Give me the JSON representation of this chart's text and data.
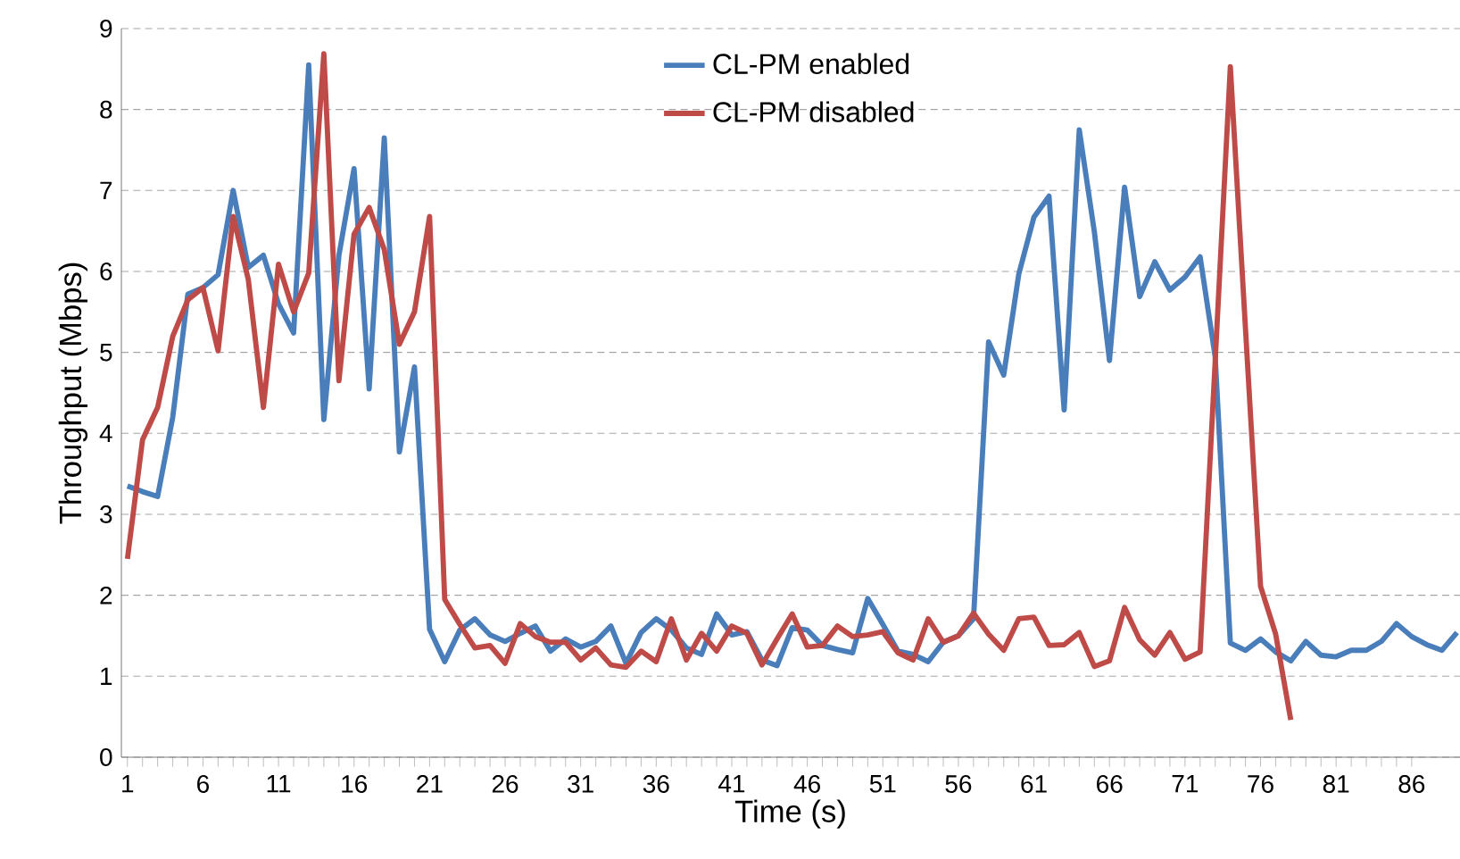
{
  "chart_data": {
    "type": "line",
    "xlabel": "Time (s)",
    "ylabel": "Throughput (Mbps)",
    "x": [
      1,
      2,
      3,
      4,
      5,
      6,
      7,
      8,
      9,
      10,
      11,
      12,
      13,
      14,
      15,
      16,
      17,
      18,
      19,
      20,
      21,
      22,
      23,
      24,
      25,
      26,
      27,
      28,
      29,
      30,
      31,
      32,
      33,
      34,
      35,
      36,
      37,
      38,
      39,
      40,
      41,
      42,
      43,
      44,
      45,
      46,
      47,
      48,
      49,
      50,
      51,
      52,
      53,
      54,
      55,
      56,
      57,
      58,
      59,
      60,
      61,
      62,
      63,
      64,
      65,
      66,
      67,
      68,
      69,
      70,
      71,
      72,
      73,
      74,
      75,
      76,
      77,
      78,
      79,
      80,
      81,
      82,
      83,
      84,
      85,
      86,
      87,
      88,
      89
    ],
    "series": [
      {
        "name": "CL-PM enabled",
        "color": "#4a7ebb",
        "values": [
          3.35,
          3.28,
          3.22,
          4.2,
          5.72,
          5.8,
          5.96,
          7.0,
          6.05,
          6.2,
          5.6,
          5.24,
          8.55,
          4.17,
          6.2,
          7.27,
          4.55,
          7.65,
          3.77,
          4.82,
          1.58,
          1.18,
          1.57,
          1.71,
          1.51,
          1.43,
          1.53,
          1.62,
          1.31,
          1.46,
          1.36,
          1.43,
          1.62,
          1.16,
          1.54,
          1.71,
          1.57,
          1.35,
          1.27,
          1.77,
          1.51,
          1.55,
          1.2,
          1.13,
          1.6,
          1.57,
          1.38,
          1.33,
          1.29,
          1.96,
          1.64,
          1.31,
          1.27,
          1.18,
          1.42,
          1.5,
          1.71,
          5.13,
          4.72,
          5.97,
          6.67,
          6.93,
          4.29,
          7.75,
          6.49,
          4.9,
          7.04,
          5.69,
          6.12,
          5.77,
          5.93,
          6.18,
          4.94,
          1.41,
          1.32,
          1.46,
          1.3,
          1.19,
          1.43,
          1.26,
          1.24,
          1.32,
          1.32,
          1.43,
          1.65,
          1.49,
          1.39,
          1.32,
          1.54
        ]
      },
      {
        "name": "CL-PM disabled",
        "color": "#be4b48",
        "x": [
          1,
          2,
          3,
          4,
          5,
          6,
          7,
          8,
          9,
          10,
          11,
          12,
          13,
          14,
          15,
          16,
          17,
          18,
          19,
          20,
          21,
          22,
          23,
          24,
          25,
          26,
          27,
          28,
          29,
          30,
          31,
          32,
          33,
          34,
          35,
          36,
          37,
          38,
          39,
          40,
          41,
          42,
          43,
          44,
          45,
          46,
          47,
          48,
          49,
          50,
          51,
          52,
          53,
          54,
          55,
          56,
          57,
          58,
          59,
          60,
          61,
          62,
          63,
          64,
          65,
          66,
          67,
          68,
          69,
          70,
          71,
          72,
          73,
          74,
          75,
          76,
          77,
          78
        ],
        "values": [
          2.45,
          3.92,
          4.32,
          5.2,
          5.65,
          5.8,
          5.02,
          6.68,
          5.9,
          4.32,
          6.09,
          5.5,
          5.98,
          8.69,
          4.65,
          6.46,
          6.79,
          6.27,
          5.1,
          5.5,
          6.68,
          1.95,
          1.64,
          1.35,
          1.38,
          1.16,
          1.65,
          1.49,
          1.42,
          1.42,
          1.2,
          1.35,
          1.14,
          1.11,
          1.31,
          1.18,
          1.71,
          1.2,
          1.53,
          1.31,
          1.62,
          1.53,
          1.14,
          1.46,
          1.77,
          1.36,
          1.38,
          1.62,
          1.49,
          1.51,
          1.55,
          1.29,
          1.2,
          1.71,
          1.42,
          1.5,
          1.78,
          1.52,
          1.32,
          1.71,
          1.73,
          1.38,
          1.39,
          1.54,
          1.12,
          1.19,
          1.85,
          1.45,
          1.26,
          1.54,
          1.21,
          1.3,
          4.9,
          8.53,
          5.3,
          2.11,
          1.52,
          0.46
        ]
      }
    ],
    "xlim": [
      0.6,
      89.2
    ],
    "ylim": [
      0,
      9
    ],
    "xticks": [
      1,
      6,
      11,
      16,
      21,
      26,
      31,
      36,
      41,
      46,
      51,
      56,
      61,
      66,
      71,
      76,
      81,
      86
    ],
    "yticks": [
      0,
      1,
      2,
      3,
      4,
      5,
      6,
      7,
      8,
      9
    ],
    "grid": "y",
    "legend": "top"
  }
}
